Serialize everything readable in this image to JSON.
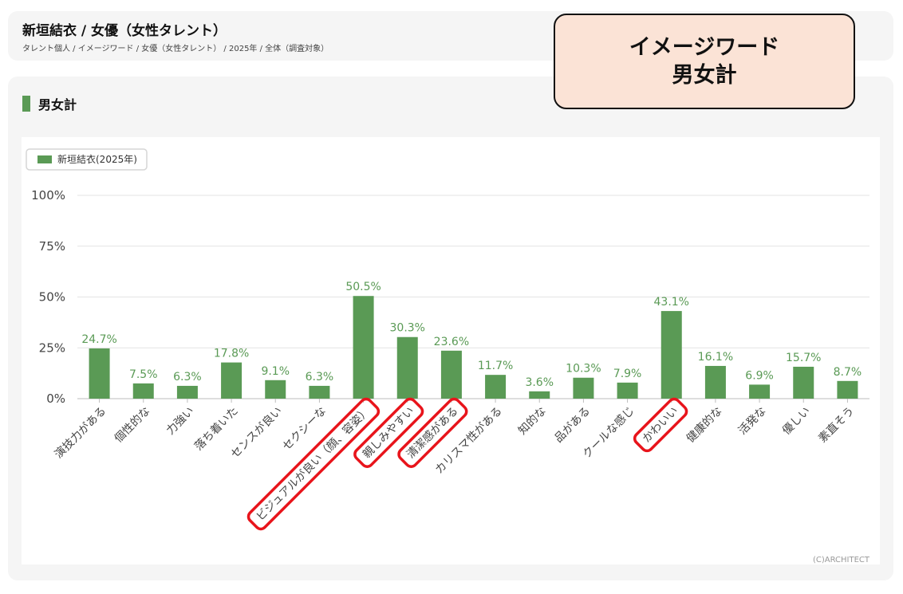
{
  "header": {
    "title": "新垣結衣 / 女優（女性タレント）",
    "breadcrumb": "タレント個人 / イメージワード / 女優（女性タレント） / 2025年 / 全体（調査対象）"
  },
  "section": {
    "title": "男女計"
  },
  "callout": {
    "line1": "イメージワード",
    "line2": "男女計"
  },
  "copyright": "(C)ARCHITECT",
  "colors": {
    "bar": "#5a9a55",
    "label": "#5a9a55",
    "highlight": "#e8141b"
  },
  "highlighted_categories": [
    "ビジュアルが良い（顔、容姿）",
    "親しみやすい",
    "清潔感がある",
    "かわいい"
  ],
  "chart_data": {
    "type": "bar",
    "legend": {
      "entries": [
        "新垣結衣(2025年)"
      ],
      "placement": "top-left"
    },
    "categories": [
      "演技力がある",
      "個性的な",
      "力強い",
      "落ち着いた",
      "センスが良い",
      "セクシーな",
      "ビジュアルが良い（顔、容姿）",
      "親しみやすい",
      "清潔感がある",
      "カリスマ性がある",
      "知的な",
      "品がある",
      "クールな感じ",
      "かわいい",
      "健康的な",
      "活発な",
      "優しい",
      "素直そう"
    ],
    "series": [
      {
        "name": "新垣結衣(2025年)",
        "values": [
          24.7,
          7.5,
          6.3,
          17.8,
          9.1,
          6.3,
          50.5,
          30.3,
          23.6,
          11.7,
          3.6,
          10.3,
          7.9,
          43.1,
          16.1,
          6.9,
          15.7,
          8.7
        ]
      }
    ],
    "data_labels": [
      "24.7%",
      "7.5%",
      "6.3%",
      "17.8%",
      "9.1%",
      "6.3%",
      "50.5%",
      "30.3%",
      "23.6%",
      "11.7%",
      "3.6%",
      "10.3%",
      "7.9%",
      "43.1%",
      "16.1%",
      "6.9%",
      "15.7%",
      "8.7%"
    ],
    "yticks": [
      "0%",
      "25%",
      "50%",
      "75%",
      "100%"
    ],
    "ylim": [
      0,
      100
    ],
    "grid": true
  }
}
